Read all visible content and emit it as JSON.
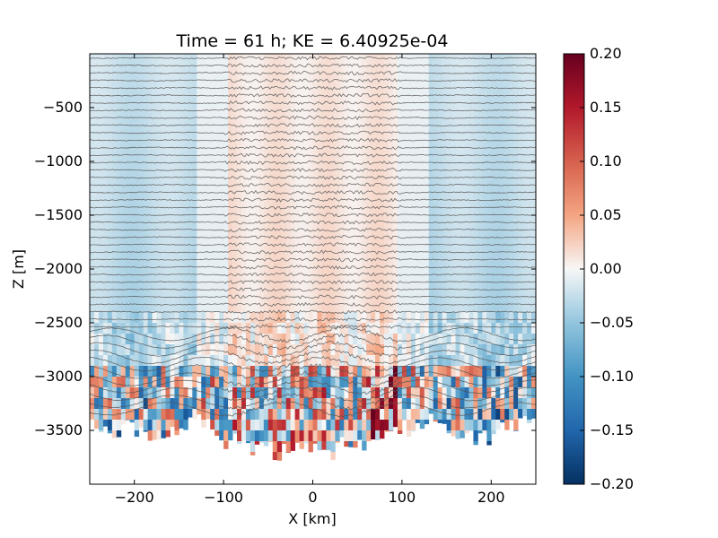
{
  "chart_data": {
    "type": "heatmap",
    "title": "Time = 61 h; KE = 6.40925e-04",
    "xlabel": "X [km]",
    "ylabel": "Z [m]",
    "xlim": [
      -250,
      250
    ],
    "ylim": [
      -4000,
      0
    ],
    "xticks": [
      -200,
      -100,
      0,
      100,
      200
    ],
    "yticks": [
      -500,
      -1000,
      -1500,
      -2000,
      -2500,
      -3000,
      -3500
    ],
    "colorbar": {
      "range": [
        -0.2,
        0.2
      ],
      "colormap": "RdBu_r",
      "ticks": [
        "0.20",
        "0.15",
        "0.10",
        "0.05",
        "0.00",
        "−0.05",
        "−0.10",
        "−0.15",
        "−0.20"
      ],
      "tick_values": [
        0.2,
        0.15,
        0.1,
        0.05,
        0.0,
        -0.05,
        -0.1,
        -0.15,
        -0.2
      ]
    },
    "field": {
      "description_values": {
        "outer_flanks_x": [
          [
            -250,
            -110
          ],
          [
            110,
            250
          ]
        ],
        "outer_flanks_value": -0.03,
        "inner_band_x": [
          -100,
          100
        ],
        "inner_band_value": 0.02,
        "bottom_extremes": [
          0.2,
          -0.2
        ]
      }
    },
    "isopycnals": {
      "count": 48,
      "z_top": -40,
      "z_bottom": -3300,
      "color": "#555555"
    },
    "bottom_profile": {
      "x": [
        -250,
        -230,
        -210,
        -190,
        -170,
        -150,
        -130,
        -110,
        -100,
        -90,
        -80,
        -70,
        -60,
        -50,
        -40,
        -30,
        -20,
        -10,
        0,
        10,
        20,
        30,
        40,
        50,
        60,
        70,
        80,
        90,
        100,
        110,
        130,
        150,
        170,
        190,
        210,
        230,
        250
      ],
      "z": [
        -3400,
        -3550,
        -3450,
        -3500,
        -3600,
        -3450,
        -3400,
        -3500,
        -3650,
        -3600,
        -3550,
        -3700,
        -3600,
        -3650,
        -3750,
        -3650,
        -3700,
        -3600,
        -3650,
        -3700,
        -3750,
        -3600,
        -3700,
        -3650,
        -3600,
        -3550,
        -3600,
        -3500,
        -3450,
        -3500,
        -3400,
        -3450,
        -3550,
        -3600,
        -3500,
        -3450,
        -3400
      ]
    },
    "colors": {
      "positive_strong": "#67001f",
      "positive": "#d6604d",
      "neutral": "#f7f7f7",
      "negative": "#4393c3",
      "negative_strong": "#053061"
    }
  }
}
